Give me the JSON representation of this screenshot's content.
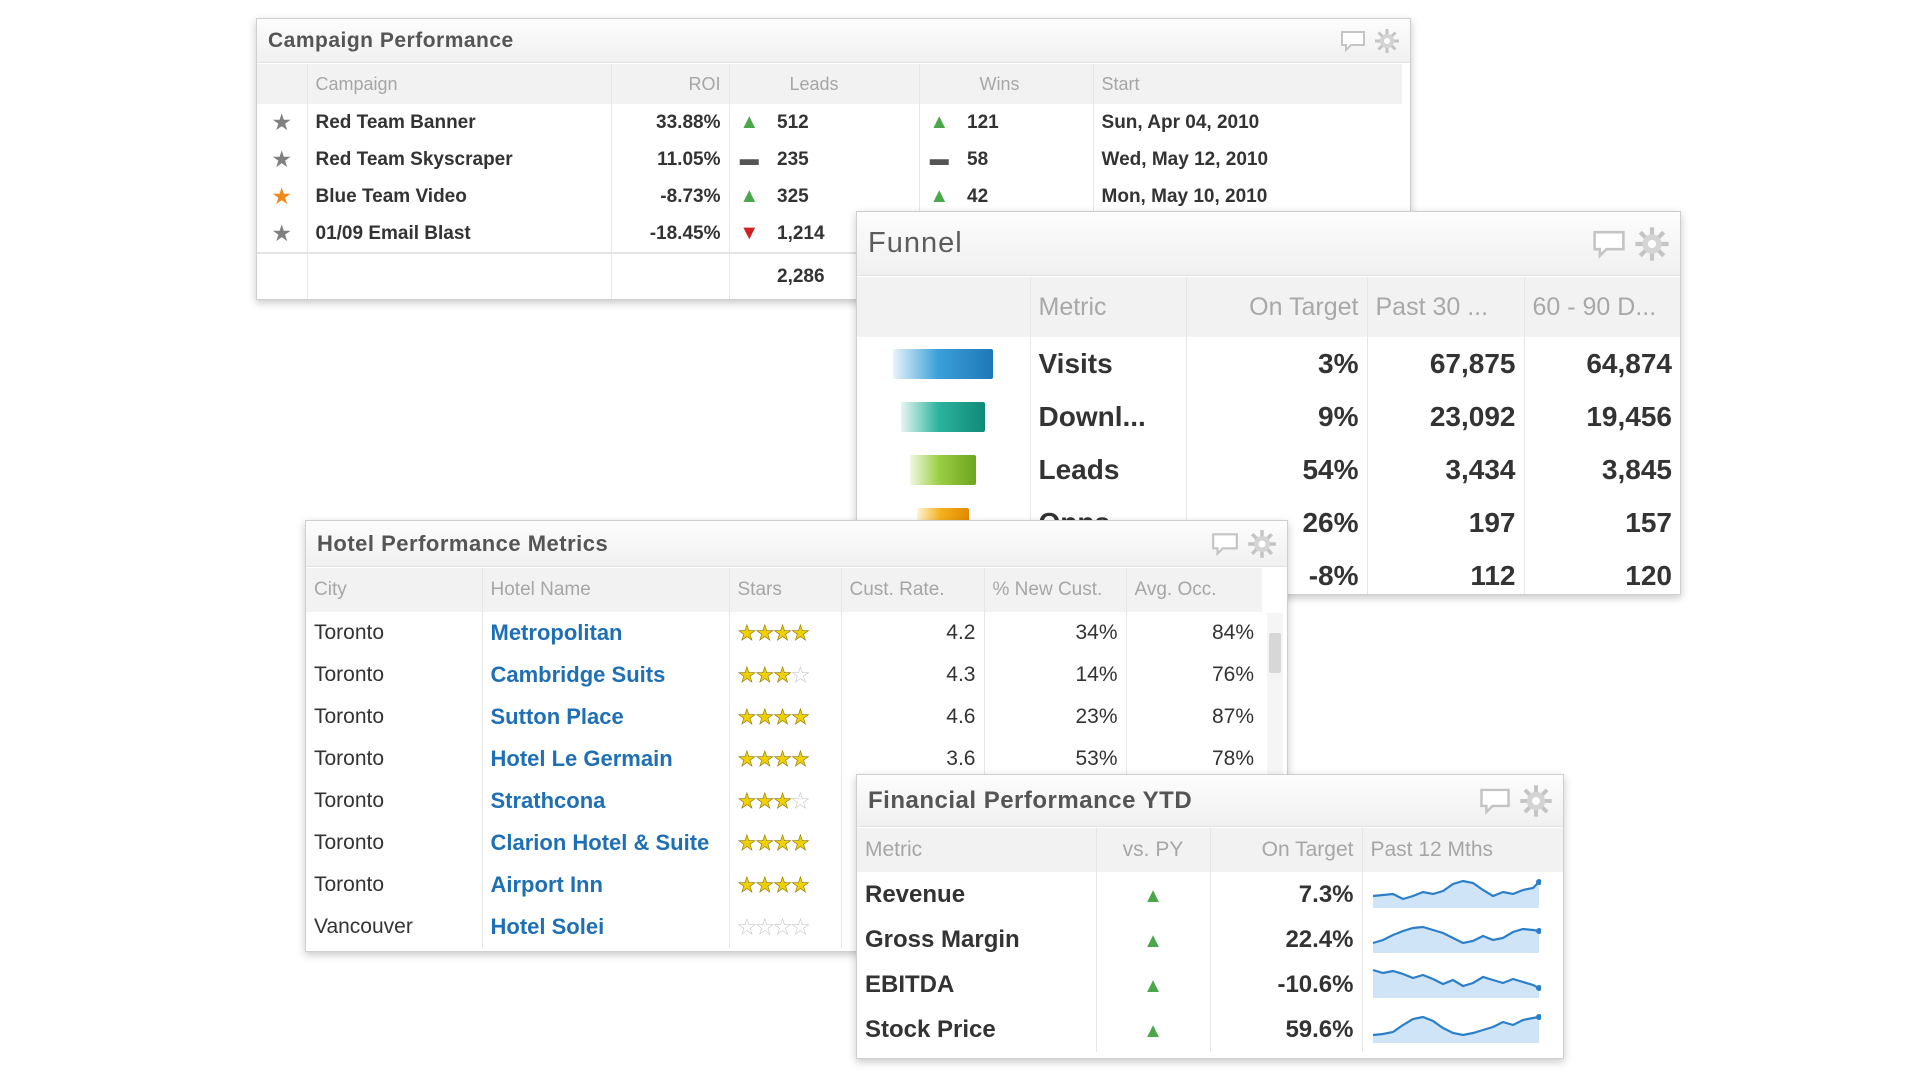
{
  "campaign": {
    "title": "Campaign Performance",
    "columns": [
      "Campaign",
      "ROI",
      "Leads",
      "Wins",
      "Start"
    ],
    "rows": [
      {
        "name": "Red Team Banner",
        "roi": "33.88%",
        "leads": "512",
        "wins": "121",
        "start": "Sun, Apr 04, 2010"
      },
      {
        "name": "Red Team Skyscraper",
        "roi": "11.05%",
        "leads": "235",
        "wins": "58",
        "start": "Wed, May 12, 2010"
      },
      {
        "name": "Blue Team Video",
        "roi": "-8.73%",
        "leads": "325",
        "wins": "42",
        "start": "Mon, May 10, 2010"
      },
      {
        "name": "01/09 Email Blast",
        "roi": "-18.45%",
        "leads": "1,214",
        "wins": "",
        "start": ""
      }
    ],
    "leads_total": "2,286"
  },
  "funnel": {
    "title": "Funnel",
    "columns": [
      "Metric",
      "On Target",
      "Past 30 ...",
      "60 - 90 D..."
    ],
    "rows": [
      {
        "metric": "Visits",
        "on_target": "3%",
        "past30": "67,875",
        "d6090": "64,874"
      },
      {
        "metric": "Downl...",
        "on_target": "9%",
        "past30": "23,092",
        "d6090": "19,456"
      },
      {
        "metric": "Leads",
        "on_target": "54%",
        "past30": "3,434",
        "d6090": "3,845"
      },
      {
        "metric": "Opps",
        "on_target": "26%",
        "past30": "197",
        "d6090": "157"
      },
      {
        "metric": "",
        "on_target": "-8%",
        "past30": "112",
        "d6090": "120"
      }
    ]
  },
  "hotel": {
    "title": "Hotel Performance Metrics",
    "columns": [
      "City",
      "Hotel Name",
      "Stars",
      "Cust. Rate.",
      "% New Cust.",
      "Avg. Occ."
    ],
    "rows": [
      {
        "city": "Toronto",
        "hotel": "Metropolitan",
        "stars": "★★★★",
        "stars_off": "",
        "rate": "4.2",
        "new_cust": "34%",
        "occ": "84%"
      },
      {
        "city": "Toronto",
        "hotel": "Cambridge Suits",
        "stars": "★★★",
        "stars_off": "★",
        "rate": "4.3",
        "new_cust": "14%",
        "occ": "76%"
      },
      {
        "city": "Toronto",
        "hotel": "Sutton Place",
        "stars": "★★★★",
        "stars_off": "",
        "rate": "4.6",
        "new_cust": "23%",
        "occ": "87%"
      },
      {
        "city": "Toronto",
        "hotel": "Hotel Le Germain",
        "stars": "★★★★",
        "stars_off": "",
        "rate": "3.6",
        "new_cust": "53%",
        "occ": "78%"
      },
      {
        "city": "Toronto",
        "hotel": "Strathcona",
        "stars": "★★★",
        "stars_off": "★",
        "rate": "",
        "new_cust": "",
        "occ": ""
      },
      {
        "city": "Toronto",
        "hotel": "Clarion Hotel & Suite",
        "stars": "★★★★",
        "stars_off": "",
        "rate": "",
        "new_cust": "",
        "occ": ""
      },
      {
        "city": "Toronto",
        "hotel": "Airport Inn",
        "stars": "★★★★",
        "stars_off": "",
        "rate": "",
        "new_cust": "",
        "occ": ""
      },
      {
        "city": "Vancouver",
        "hotel": "Hotel Solei",
        "stars": "",
        "stars_off": "★★★★",
        "rate": "",
        "new_cust": "",
        "occ": ""
      }
    ]
  },
  "financial": {
    "title": "Financial Performance YTD",
    "columns": [
      "Metric",
      "vs. PY",
      "On Target",
      "Past 12 Mths"
    ],
    "rows": [
      {
        "metric": "Revenue",
        "on_target": "7.3%"
      },
      {
        "metric": "Gross Margin",
        "on_target": "22.4%"
      },
      {
        "metric": "EBITDA",
        "on_target": "-10.6%"
      },
      {
        "metric": "Stock Price",
        "on_target": "59.6%"
      }
    ]
  },
  "icons": {
    "comment": "comment-icon",
    "settings": "gear-icon",
    "trend_up": "triangle-up",
    "trend_down": "triangle-down",
    "trend_flat": "dash"
  },
  "colors": {
    "up": "#4aa84a",
    "down": "#d02020",
    "link": "#1f6fb5",
    "star_favorite": "#f08a1c",
    "star_normal": "#808080"
  }
}
